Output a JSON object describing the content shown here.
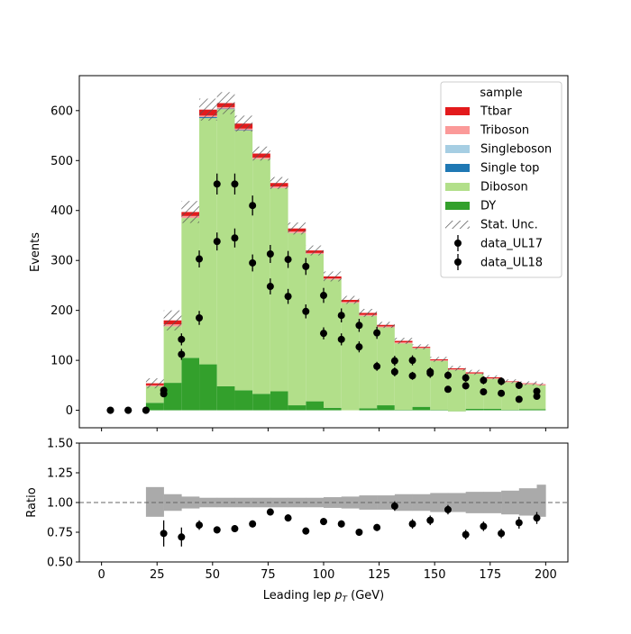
{
  "chart_data": [
    {
      "type": "bar",
      "stacked": true,
      "y_label": "Events",
      "ylim": [
        -35,
        670
      ],
      "y_ticks": [
        "0",
        "100",
        "200",
        "300",
        "400",
        "500",
        "600"
      ],
      "bin_edges": [
        20,
        28,
        36,
        44,
        52,
        60,
        68,
        76,
        84,
        92,
        100,
        108,
        116,
        124,
        132,
        140,
        148,
        156,
        164,
        172,
        180,
        188,
        196,
        200
      ],
      "series": [
        {
          "name": "DY",
          "color": "#33a02c",
          "values": [
            15,
            55,
            105,
            92,
            48,
            40,
            33,
            38,
            10,
            18,
            5,
            0,
            4,
            10,
            1,
            7,
            1,
            -2,
            3,
            3,
            1,
            2,
            2
          ]
        },
        {
          "name": "Diboson",
          "color": "#b2df8a",
          "values": [
            33,
            113,
            280,
            493,
            555,
            520,
            470,
            407,
            345,
            295,
            257,
            215,
            185,
            156,
            133,
            117,
            98,
            83,
            70,
            60,
            55,
            50,
            48
          ]
        },
        {
          "name": "Single top",
          "color": "#1f78b4",
          "values": [
            0,
            0,
            0,
            2,
            1,
            1,
            0,
            0,
            0,
            0,
            0,
            0,
            0,
            0,
            0,
            0,
            0,
            0,
            0,
            0,
            0,
            0,
            0
          ]
        },
        {
          "name": "Singleboson",
          "color": "#a6cee3",
          "values": [
            0,
            0,
            0,
            0,
            0,
            0,
            0,
            0,
            0,
            0,
            0,
            0,
            0,
            0,
            0,
            0,
            0,
            0,
            0,
            0,
            0,
            0,
            0
          ]
        },
        {
          "name": "Triboson",
          "color": "#fb9a99",
          "values": [
            2,
            4,
            4,
            3,
            3,
            3,
            3,
            3,
            3,
            2,
            2,
            2,
            2,
            2,
            2,
            1,
            1,
            1,
            1,
            1,
            1,
            1,
            1
          ]
        },
        {
          "name": "Ttbar",
          "color": "#e31a1c",
          "values": [
            4,
            8,
            8,
            12,
            8,
            10,
            8,
            7,
            6,
            5,
            4,
            4,
            4,
            3,
            3,
            2,
            2,
            2,
            2,
            2,
            1,
            1,
            1
          ]
        }
      ],
      "stat_unc": {
        "name": "Stat. Unc.",
        "values": [
          10,
          20,
          22,
          22,
          22,
          16,
          14,
          12,
          12,
          10,
          10,
          8,
          8,
          6,
          6,
          5,
          5,
          5,
          5,
          4,
          4,
          4,
          3
        ]
      },
      "data_series": [
        {
          "name": "data_UL17",
          "x": [
            4,
            12,
            20,
            28,
            36,
            44,
            52,
            60,
            68,
            76,
            84,
            92,
            100,
            108,
            116,
            124,
            132,
            140,
            148,
            156,
            164,
            172,
            180,
            188,
            196
          ],
          "y": [
            0,
            0,
            0,
            40,
            142,
            303,
            453,
            453,
            410,
            313,
            302,
            288,
            230,
            190,
            170,
            155,
            99,
            100,
            77,
            70,
            65,
            60,
            58,
            50,
            38
          ],
          "err": [
            0,
            0,
            0,
            6,
            12,
            17,
            21,
            21,
            20,
            18,
            17,
            17,
            15,
            14,
            13,
            12,
            10,
            10,
            9,
            8,
            8,
            8,
            8,
            7,
            6
          ]
        },
        {
          "name": "data_UL18",
          "x": [
            4,
            12,
            20,
            28,
            36,
            44,
            52,
            60,
            68,
            76,
            84,
            92,
            100,
            108,
            116,
            124,
            132,
            140,
            148,
            156,
            164,
            172,
            180,
            188,
            196
          ],
          "y": [
            0,
            0,
            0,
            33,
            112,
            185,
            338,
            345,
            295,
            248,
            228,
            198,
            154,
            142,
            127,
            88,
            77,
            69,
            74,
            42,
            49,
            37,
            34,
            22,
            28
          ],
          "err": [
            0,
            0,
            0,
            6,
            11,
            14,
            18,
            19,
            17,
            16,
            15,
            14,
            12,
            12,
            11,
            9,
            9,
            8,
            9,
            6,
            7,
            6,
            6,
            5,
            5
          ]
        }
      ]
    },
    {
      "type": "scatter",
      "x_label_prefix": "Leading lep ",
      "x_label_var": "p",
      "x_label_sub": "T",
      "x_label_suffix": " (GeV)",
      "y_label": "Ratio",
      "xlim": [
        -10,
        210
      ],
      "ylim": [
        0.5,
        1.5
      ],
      "x_ticks": [
        "0",
        "25",
        "50",
        "75",
        "100",
        "125",
        "150",
        "175",
        "200"
      ],
      "y_ticks": [
        "0.50",
        "0.75",
        "1.00",
        "1.25",
        "1.50"
      ],
      "reference_line": 1.0,
      "band_lo": [
        0.88,
        0.93,
        0.95,
        0.96,
        0.96,
        0.96,
        0.96,
        0.96,
        0.96,
        0.96,
        0.955,
        0.95,
        0.94,
        0.94,
        0.93,
        0.93,
        0.92,
        0.92,
        0.91,
        0.91,
        0.9,
        0.89,
        0.88
      ],
      "band_hi": [
        1.13,
        1.07,
        1.05,
        1.04,
        1.04,
        1.04,
        1.04,
        1.04,
        1.04,
        1.04,
        1.045,
        1.05,
        1.06,
        1.06,
        1.07,
        1.07,
        1.08,
        1.08,
        1.09,
        1.09,
        1.1,
        1.12,
        1.15
      ],
      "points": {
        "x": [
          28,
          36,
          44,
          52,
          60,
          68,
          76,
          84,
          92,
          100,
          108,
          116,
          124,
          132,
          140,
          148,
          156,
          164,
          172,
          180,
          188,
          196
        ],
        "y": [
          0.74,
          0.71,
          0.81,
          0.77,
          0.78,
          0.82,
          0.92,
          0.87,
          0.76,
          0.84,
          0.82,
          0.75,
          0.79,
          0.97,
          0.82,
          0.85,
          0.94,
          0.73,
          0.8,
          0.74,
          0.83,
          0.87
        ],
        "err": [
          0.11,
          0.08,
          0.04,
          0.03,
          0.03,
          0.03,
          0.03,
          0.03,
          0.03,
          0.03,
          0.03,
          0.03,
          0.03,
          0.04,
          0.04,
          0.04,
          0.04,
          0.04,
          0.04,
          0.04,
          0.05,
          0.05
        ]
      }
    }
  ],
  "legend": {
    "title": "sample",
    "entries": [
      {
        "label": "Ttbar",
        "kind": "fill",
        "color": "#e31a1c"
      },
      {
        "label": "Triboson",
        "kind": "fill",
        "color": "#fb9a99"
      },
      {
        "label": "Singleboson",
        "kind": "fill",
        "color": "#a6cee3"
      },
      {
        "label": "Single top",
        "kind": "fill",
        "color": "#1f78b4"
      },
      {
        "label": "Diboson",
        "kind": "fill",
        "color": "#b2df8a"
      },
      {
        "label": "DY",
        "kind": "fill",
        "color": "#33a02c"
      },
      {
        "label": "Stat. Unc.",
        "kind": "hatch"
      },
      {
        "label": "data_UL17",
        "kind": "marker"
      },
      {
        "label": "data_UL18",
        "kind": "marker"
      }
    ]
  }
}
